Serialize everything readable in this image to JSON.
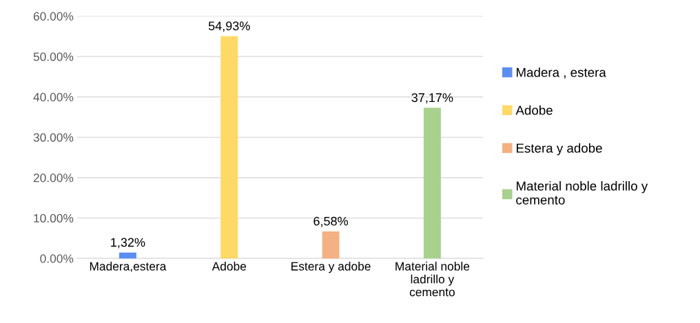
{
  "chart_data": {
    "type": "bar",
    "categories": [
      "Madera,estera",
      "Adobe",
      "Estera y adobe",
      "Material noble ladrillo y cemento"
    ],
    "series": [
      {
        "name": "Madera , estera",
        "color": "#5b8ef0",
        "values": [
          1.32,
          null,
          null,
          null
        ],
        "value_labels": [
          "1,32%",
          null,
          null,
          null
        ]
      },
      {
        "name": "Adobe",
        "color": "#ffd966",
        "values": [
          null,
          54.93,
          null,
          null
        ],
        "value_labels": [
          null,
          "54,93%",
          null,
          null
        ]
      },
      {
        "name": "Estera y adobe",
        "color": "#f4b183",
        "values": [
          null,
          null,
          6.58,
          null
        ],
        "value_labels": [
          null,
          null,
          "6,58%",
          null
        ]
      },
      {
        "name": "Material noble ladrillo y cemento",
        "color": "#a9d18e",
        "values": [
          null,
          null,
          null,
          37.17
        ],
        "value_labels": [
          null,
          null,
          null,
          "37,17%"
        ]
      }
    ],
    "ylim": [
      0,
      60
    ],
    "yticks": [
      {
        "value": 0,
        "label": "0.00%"
      },
      {
        "value": 10,
        "label": "10.00%"
      },
      {
        "value": 20,
        "label": "20.00%"
      },
      {
        "value": 30,
        "label": "30.00%"
      },
      {
        "value": 40,
        "label": "40.00%"
      },
      {
        "value": 50,
        "label": "50.00%"
      },
      {
        "value": 60,
        "label": "60.00%"
      }
    ],
    "grid": "y",
    "legend": "right"
  }
}
